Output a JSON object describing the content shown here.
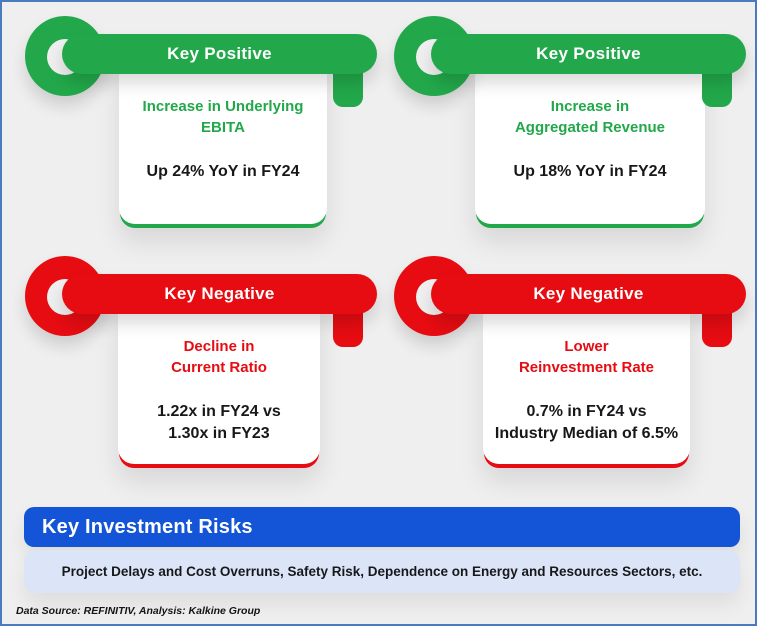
{
  "theme": {
    "background": "#f0eff0",
    "frame_border": "#4d7abf",
    "positive": "#22a84a",
    "negative": "#e60c12",
    "banner_bg": "#1355d6",
    "banner_text": "#ffffff",
    "risk_box_bg": "#dce4f8",
    "text_dark": "#17181a"
  },
  "cards": [
    {
      "position": "top-left",
      "type": "positive",
      "key_label": "Key Positive",
      "headline_lines": [
        "Increase in Underlying",
        "EBITA"
      ],
      "stat_lines": [
        "Up 24% YoY in FY24"
      ]
    },
    {
      "position": "top-right",
      "type": "positive",
      "key_label": "Key Positive",
      "headline_lines": [
        "Increase in",
        "Aggregated Revenue"
      ],
      "stat_lines": [
        "Up 18% YoY in FY24"
      ]
    },
    {
      "position": "bottom-left",
      "type": "negative",
      "key_label": "Key Negative",
      "headline_lines": [
        "Decline in",
        "Current Ratio"
      ],
      "stat_lines": [
        "1.22x in FY24 vs",
        "1.30x in FY23"
      ]
    },
    {
      "position": "bottom-right",
      "type": "negative",
      "key_label": "Key Negative",
      "headline_lines": [
        "Lower",
        "Reinvestment Rate"
      ],
      "stat_lines": [
        "0.7% in FY24 vs",
        "Industry Median of 6.5%"
      ]
    }
  ],
  "risks": {
    "title": "Key Investment Risks",
    "description": "Project Delays and Cost Overruns, Safety Risk, Dependence on Energy and Resources Sectors, etc."
  },
  "footer": {
    "text": "Data Source: REFINITIV, Analysis: Kalkine Group"
  }
}
